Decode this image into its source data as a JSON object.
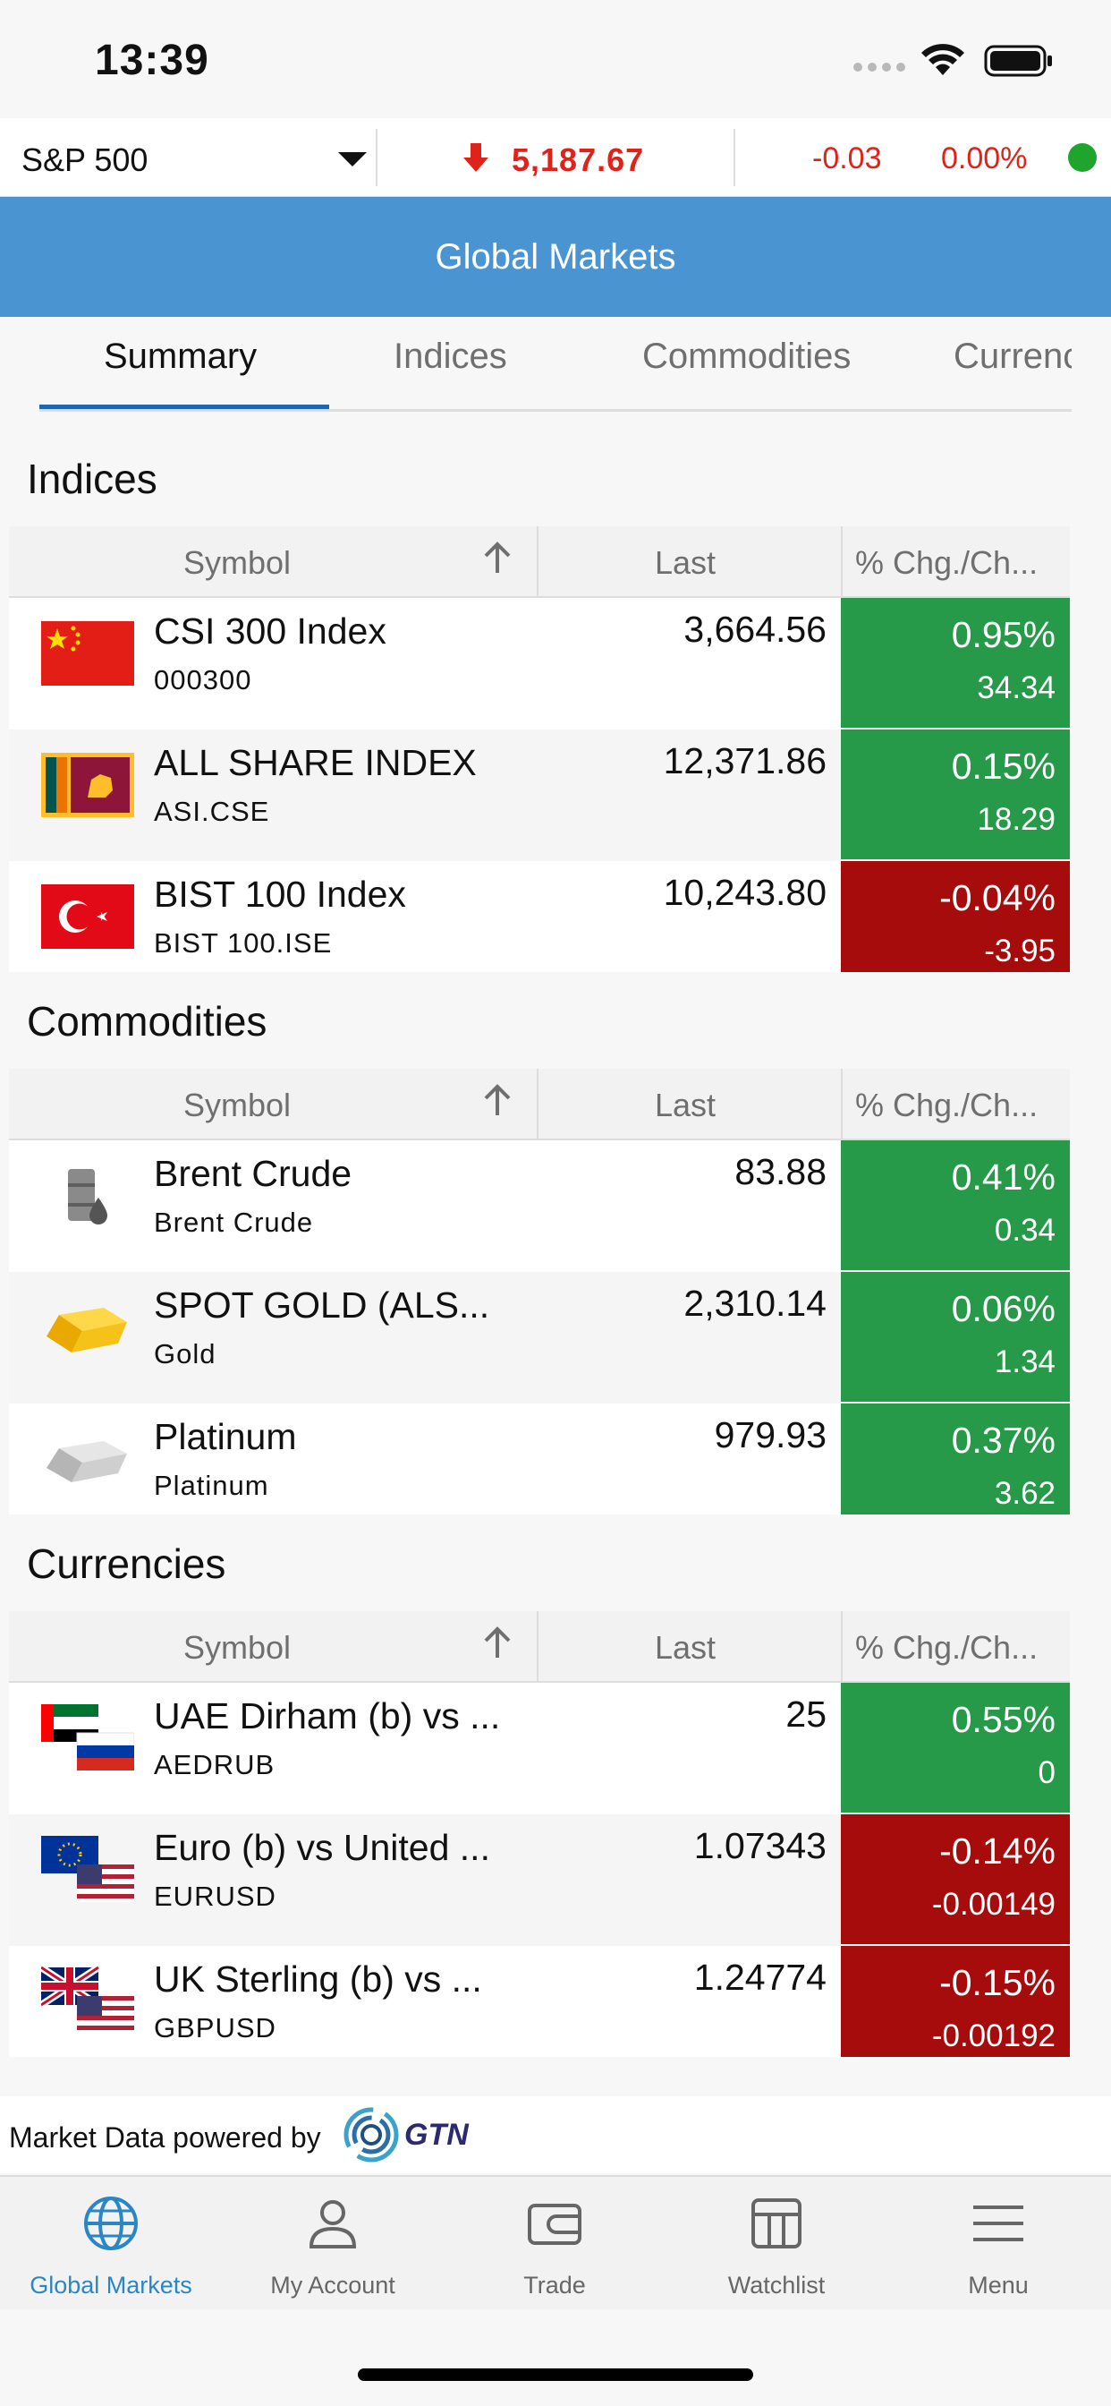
{
  "status_bar": {
    "time": "13:39"
  },
  "ticker": {
    "symbol": "S&P 500",
    "price": "5,187.67",
    "change": "-0.03",
    "percent": "0.00%",
    "direction": "down",
    "colors": {
      "down": "#e0231a",
      "live": "#1fa52d"
    }
  },
  "header": {
    "title": "Global Markets"
  },
  "tabs": [
    "Summary",
    "Indices",
    "Commodities",
    "Currencies"
  ],
  "table_headers": {
    "symbol": "Symbol",
    "last": "Last",
    "change": "% Chg./Ch..."
  },
  "sections": {
    "indices": {
      "title": "Indices",
      "rows": [
        {
          "name": "CSI 300 Index",
          "code": "000300",
          "last": "3,664.56",
          "pct": "0.95%",
          "chg": "34.34",
          "status": "up",
          "icon": "china-flag-icon"
        },
        {
          "name": "ALL SHARE INDEX",
          "code": "ASI.CSE",
          "last": "12,371.86",
          "pct": "0.15%",
          "chg": "18.29",
          "status": "up",
          "icon": "sri-lanka-flag-icon"
        },
        {
          "name": "BIST 100 Index",
          "code": "BIST 100.ISE",
          "last": "10,243.80",
          "pct": "-0.04%",
          "chg": "-3.95",
          "status": "down",
          "icon": "turkey-flag-icon"
        }
      ]
    },
    "commodities": {
      "title": "Commodities",
      "rows": [
        {
          "name": "Brent Crude",
          "code": "Brent Crude",
          "last": "83.88",
          "pct": "0.41%",
          "chg": "0.34",
          "status": "up",
          "icon": "oil-barrel-icon"
        },
        {
          "name": "SPOT GOLD (ALS...",
          "code": "Gold",
          "last": "2,310.14",
          "pct": "0.06%",
          "chg": "1.34",
          "status": "up",
          "icon": "gold-bar-icon"
        },
        {
          "name": "Platinum",
          "code": "Platinum",
          "last": "979.93",
          "pct": "0.37%",
          "chg": "3.62",
          "status": "up",
          "icon": "platinum-bar-icon"
        }
      ]
    },
    "currencies": {
      "title": "Currencies",
      "rows": [
        {
          "name": "UAE Dirham (b) vs ...",
          "code": "AEDRUB",
          "last": "25",
          "pct": "0.55%",
          "chg": "0",
          "status": "up",
          "icon": "uae-russia-flags-icon"
        },
        {
          "name": "Euro (b) vs United ...",
          "code": "EURUSD",
          "last": "1.07343",
          "pct": "-0.14%",
          "chg": "-0.00149",
          "status": "down",
          "icon": "eu-us-flags-icon"
        },
        {
          "name": "UK Sterling (b) vs ...",
          "code": "GBPUSD",
          "last": "1.24774",
          "pct": "-0.15%",
          "chg": "-0.00192",
          "status": "down",
          "icon": "uk-us-flags-icon"
        }
      ]
    }
  },
  "footer": {
    "powered_text": "Market Data powered by",
    "logo_text": "GTN"
  },
  "bottom_nav": [
    {
      "label": "Global Markets",
      "icon": "globe-icon",
      "active": true
    },
    {
      "label": "My Account",
      "icon": "person-icon",
      "active": false
    },
    {
      "label": "Trade",
      "icon": "wallet-icon",
      "active": false
    },
    {
      "label": "Watchlist",
      "icon": "table-icon",
      "active": false
    },
    {
      "label": "Menu",
      "icon": "menu-icon",
      "active": false
    }
  ],
  "colors": {
    "accent": "#4a94d2",
    "tab_active": "#1e66b0",
    "up": "#279a49",
    "down": "#a60c0c",
    "nav_active": "#2b86c5"
  }
}
